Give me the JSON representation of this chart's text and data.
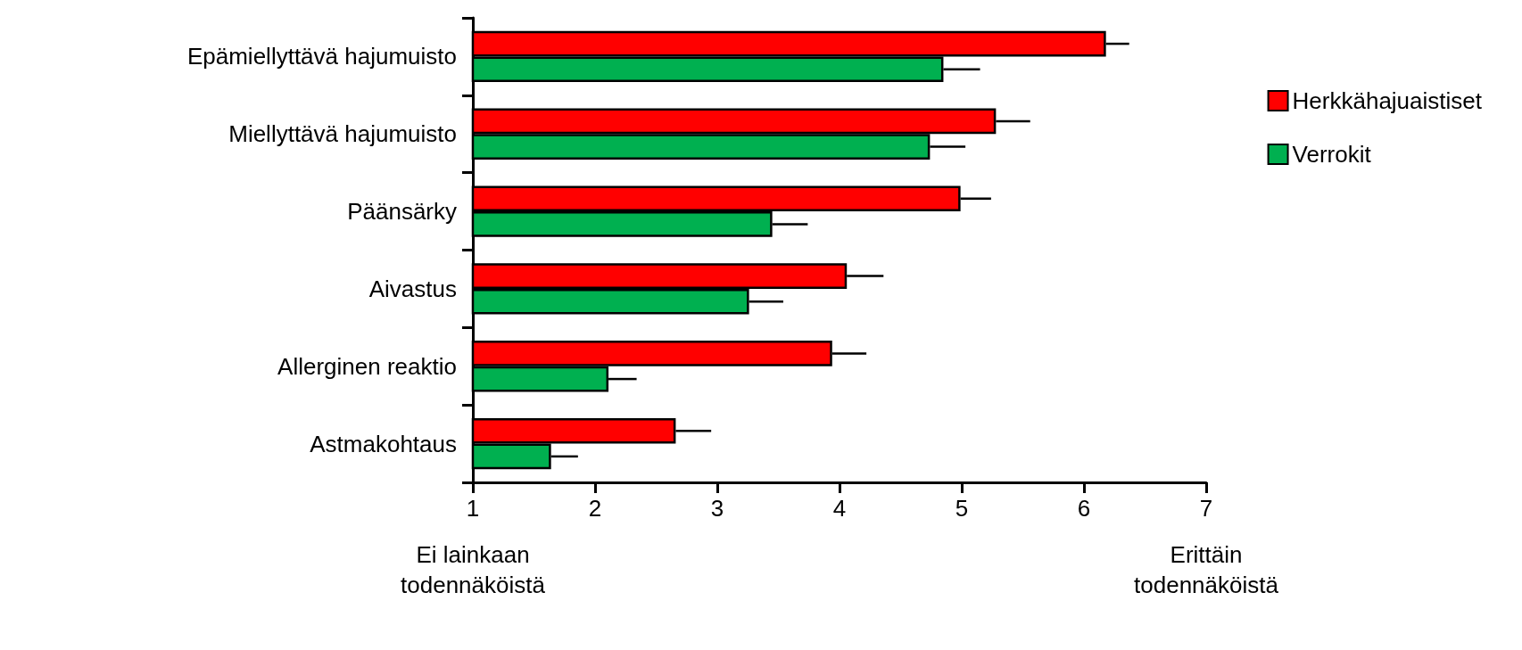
{
  "chart_data": {
    "type": "bar",
    "orientation": "horizontal",
    "categories": [
      "Epämiellyttävä hajumuisto",
      "Miellyttävä hajumuisto",
      "Päänsärky",
      "Aivastus",
      "Allerginen reaktio",
      "Astmakohtaus"
    ],
    "series": [
      {
        "name": "Herkkähajuaistiset",
        "color": "#ff0000",
        "values": [
          6.18,
          5.28,
          4.99,
          4.06,
          3.94,
          2.66
        ],
        "errors": [
          [
            6.18,
            6.37
          ],
          [
            5.28,
            5.56
          ],
          [
            4.99,
            5.24
          ],
          [
            4.06,
            4.36
          ],
          [
            3.94,
            4.22
          ],
          [
            2.66,
            2.95
          ]
        ]
      },
      {
        "name": "Verrokit",
        "color": "#00b050",
        "values": [
          4.85,
          4.74,
          3.45,
          3.26,
          2.11,
          1.64
        ],
        "errors": [
          [
            4.85,
            5.15
          ],
          [
            4.74,
            5.03
          ],
          [
            3.45,
            3.74
          ],
          [
            3.26,
            3.54
          ],
          [
            2.11,
            2.34
          ],
          [
            1.64,
            1.86
          ]
        ]
      }
    ],
    "xlim": [
      1,
      7
    ],
    "xticks": [
      1,
      2,
      3,
      4,
      5,
      6,
      7
    ],
    "annotations": [
      "Ei lainkaan\ntodennäköistä",
      "Erittäin\ntodennäköistä"
    ],
    "legend": "right",
    "grid": false
  }
}
